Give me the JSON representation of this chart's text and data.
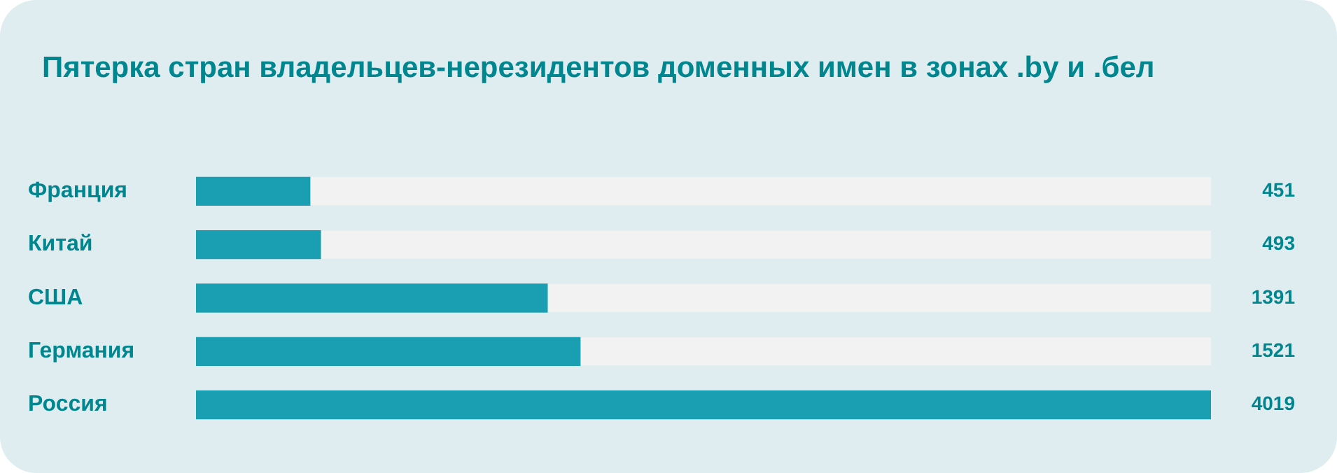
{
  "chart_data": {
    "type": "bar",
    "orientation": "horizontal",
    "title": "Пятерка стран владельцев-нерезидентов доменных имен в зонах .by и .бел",
    "categories": [
      "Франция",
      "Китай",
      "США",
      "Германия",
      "Россия"
    ],
    "values": [
      451,
      493,
      1391,
      1521,
      4019
    ],
    "color": "#1a9fb2",
    "data_labels": true,
    "grid": false,
    "legend": false
  }
}
